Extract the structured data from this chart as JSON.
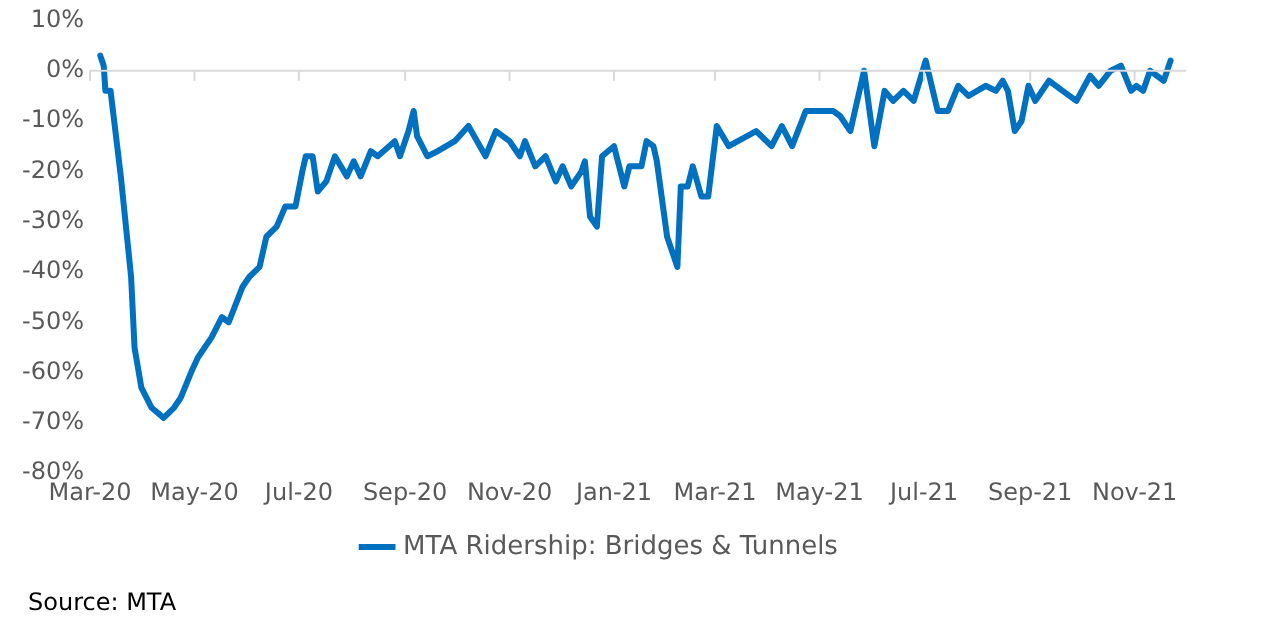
{
  "chart_data": {
    "type": "line",
    "x": [
      "2020-03-07",
      "2020-03-09",
      "2020-03-10",
      "2020-03-13",
      "2020-03-19",
      "2020-03-25",
      "2020-03-27",
      "2020-03-31",
      "2020-04-06",
      "2020-04-13",
      "2020-04-19",
      "2020-04-23",
      "2020-04-29",
      "2020-05-03",
      "2020-05-11",
      "2020-05-17",
      "2020-05-21",
      "2020-05-29",
      "2020-06-02",
      "2020-06-08",
      "2020-06-12",
      "2020-06-18",
      "2020-06-23",
      "2020-06-29",
      "2020-07-03",
      "2020-07-05",
      "2020-07-09",
      "2020-07-12",
      "2020-07-17",
      "2020-07-22",
      "2020-07-29",
      "2020-08-02",
      "2020-08-06",
      "2020-08-12",
      "2020-08-16",
      "2020-08-26",
      "2020-08-29",
      "2020-09-03",
      "2020-09-06",
      "2020-09-08",
      "2020-09-14",
      "2020-09-20",
      "2020-09-30",
      "2020-10-08",
      "2020-10-18",
      "2020-10-24",
      "2020-11-01",
      "2020-11-07",
      "2020-11-10",
      "2020-11-16",
      "2020-11-22",
      "2020-11-28",
      "2020-12-02",
      "2020-12-07",
      "2020-12-13",
      "2020-12-15",
      "2020-12-18",
      "2020-12-22",
      "2020-12-25",
      "2021-01-01",
      "2021-01-07",
      "2021-01-10",
      "2021-01-17",
      "2021-01-20",
      "2021-01-24",
      "2021-01-26",
      "2021-02-01",
      "2021-02-07",
      "2021-02-09",
      "2021-02-13",
      "2021-02-16",
      "2021-02-21",
      "2021-02-25",
      "2021-03-02",
      "2021-03-09",
      "2021-03-25",
      "2021-04-03",
      "2021-04-09",
      "2021-04-15",
      "2021-04-23",
      "2021-05-01",
      "2021-05-09",
      "2021-05-13",
      "2021-05-19",
      "2021-05-27",
      "2021-06-02",
      "2021-06-08",
      "2021-06-13",
      "2021-06-19",
      "2021-06-25",
      "2021-07-02",
      "2021-07-09",
      "2021-07-15",
      "2021-07-21",
      "2021-07-27",
      "2021-08-06",
      "2021-08-12",
      "2021-08-16",
      "2021-08-19",
      "2021-08-23",
      "2021-08-27",
      "2021-08-31",
      "2021-09-04",
      "2021-09-12",
      "2021-09-20",
      "2021-09-28",
      "2021-10-06",
      "2021-10-11",
      "2021-10-18",
      "2021-10-24",
      "2021-10-30",
      "2021-11-02",
      "2021-11-06",
      "2021-11-10",
      "2021-11-14",
      "2021-11-18",
      "2021-11-22"
    ],
    "series": [
      {
        "name": "MTA Ridership: Bridges & Tunnels",
        "color": "#0070c0",
        "values": [
          3,
          1,
          -4,
          -4,
          -21,
          -41,
          -55,
          -63,
          -67,
          -69,
          -67,
          -65,
          -60,
          -57,
          -53,
          -49,
          -50,
          -43,
          -41,
          -39,
          -33,
          -31,
          -27,
          -27,
          -20,
          -17,
          -17,
          -24,
          -22,
          -17,
          -21,
          -18,
          -21,
          -16,
          -17,
          -14,
          -17,
          -12,
          -8,
          -13,
          -17,
          -16,
          -14,
          -11,
          -17,
          -12,
          -14,
          -17,
          -14,
          -19,
          -17,
          -22,
          -19,
          -23,
          -20,
          -18,
          -29,
          -31,
          -17,
          -15,
          -23,
          -19,
          -19,
          -14,
          -15,
          -18,
          -33,
          -39,
          -23,
          -23,
          -19,
          -25,
          -25,
          -11,
          -15,
          -12,
          -15,
          -11,
          -15,
          -8,
          -8,
          -8,
          -9,
          -12,
          0,
          -15,
          -4,
          -6,
          -4,
          -6,
          2,
          -8,
          -8,
          -3,
          -5,
          -3,
          -4,
          -2,
          -4,
          -12,
          -10,
          -3,
          -6,
          -2,
          -4,
          -6,
          -1,
          -3,
          0,
          1,
          -4,
          -3,
          -4,
          0,
          -1,
          -2,
          2
        ]
      }
    ],
    "xlim": [
      "2020-03-01",
      "2021-12-01"
    ],
    "xticks": [
      {
        "value": "2020-03-01",
        "label": "Mar-20"
      },
      {
        "value": "2020-05-01",
        "label": "May-20"
      },
      {
        "value": "2020-07-01",
        "label": "Jul-20"
      },
      {
        "value": "2020-09-01",
        "label": "Sep-20"
      },
      {
        "value": "2020-11-01",
        "label": "Nov-20"
      },
      {
        "value": "2021-01-01",
        "label": "Jan-21"
      },
      {
        "value": "2021-03-01",
        "label": "Mar-21"
      },
      {
        "value": "2021-05-01",
        "label": "May-21"
      },
      {
        "value": "2021-07-01",
        "label": "Jul-21"
      },
      {
        "value": "2021-09-01",
        "label": "Sep-21"
      },
      {
        "value": "2021-11-01",
        "label": "Nov-21"
      }
    ],
    "ylim": [
      -80,
      10
    ],
    "yticks": [
      {
        "value": -80,
        "label": "-80%"
      },
      {
        "value": -70,
        "label": "-70%"
      },
      {
        "value": -60,
        "label": "-60%"
      },
      {
        "value": -50,
        "label": "-50%"
      },
      {
        "value": -40,
        "label": "-40%"
      },
      {
        "value": -30,
        "label": "-30%"
      },
      {
        "value": -20,
        "label": "-20%"
      },
      {
        "value": -10,
        "label": "-10%"
      },
      {
        "value": 0,
        "label": "0%"
      },
      {
        "value": 10,
        "label": "10%"
      }
    ],
    "grid": false,
    "ref_lines": [
      {
        "axis": "y",
        "value": 0,
        "color": "#d9d9d9"
      }
    ],
    "legend": "bottom",
    "marker": "none",
    "line_style": "solid",
    "annotations": [
      "Source: MTA"
    ]
  }
}
